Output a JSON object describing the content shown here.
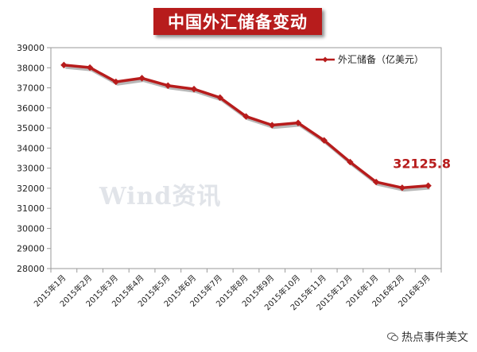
{
  "chart_data": {
    "type": "line",
    "title": "中国外汇储备变动",
    "xlabel": "",
    "ylabel": "",
    "categories": [
      "2015年1月",
      "2015年2月",
      "2015年3月",
      "2015年4月",
      "2015年5月",
      "2015年6月",
      "2015年7月",
      "2015年8月",
      "2015年9月",
      "2015年10月",
      "2015年11月",
      "2015年12月",
      "2016年1月",
      "2016年2月",
      "2016年3月"
    ],
    "yticks": [
      "39000",
      "38000",
      "37000",
      "36000",
      "35000",
      "34000",
      "33000",
      "32000",
      "31000",
      "30000",
      "29000",
      "28000"
    ],
    "ylim": [
      28000,
      39000
    ],
    "series": [
      {
        "name": "外汇储备（亿美元）",
        "values": [
          38134,
          38009,
          37300,
          37481,
          37111,
          36938,
          36513,
          35574,
          35141,
          35255,
          34383,
          33304,
          32309,
          32023,
          32125.8
        ]
      }
    ],
    "annotation": "32125.8",
    "legend_position": "top-right",
    "grid": false,
    "colors": {
      "line": "#b71c1c",
      "annotation": "#b71c1c",
      "title_bg": "#b71c1c"
    }
  },
  "watermark": "Wind资讯",
  "footer": {
    "text": "热点事件美文",
    "icon": "wechat-icon"
  }
}
